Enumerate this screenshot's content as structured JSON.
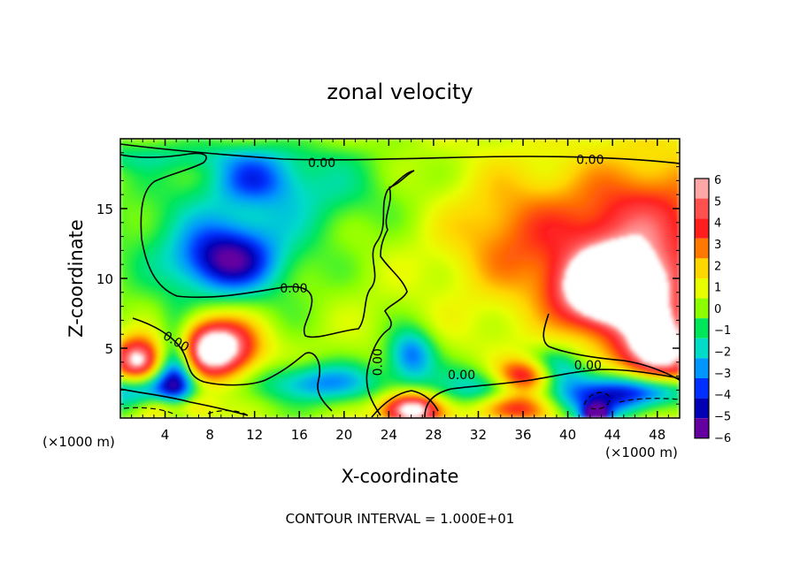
{
  "chart_data": {
    "type": "heatmap",
    "title": "zonal velocity",
    "xlabel": "X-coordinate",
    "ylabel": "Z-coordinate",
    "x_unit_left": "(×1000 m)",
    "x_unit_right": "(×1000 m)",
    "footer": "CONTOUR INTERVAL = 1.000E+01",
    "xlim": [
      0,
      50
    ],
    "ylim": [
      0,
      20
    ],
    "x_ticks": [
      "4",
      "8",
      "12",
      "16",
      "20",
      "24",
      "28",
      "32",
      "36",
      "40",
      "44",
      "48"
    ],
    "y_ticks": [
      "5",
      "10",
      "15"
    ],
    "colorbar": {
      "range": [
        -6,
        6
      ],
      "labels": [
        "6",
        "5",
        "4",
        "3",
        "2",
        "1",
        "0",
        "−1",
        "−2",
        "−3",
        "−4",
        "−5",
        "−6"
      ],
      "colors": [
        "#ffa7a7",
        "#ff5050",
        "#ff1e1e",
        "#ff7800",
        "#ffd700",
        "#e8ff00",
        "#8cff00",
        "#00e65a",
        "#00dcc8",
        "#0096ff",
        "#0030ff",
        "#0000b4",
        "#6400a0"
      ],
      "saturation_color": "#ffffff"
    },
    "contour_labels": [
      {
        "text": "0.00",
        "x": 18.0,
        "z": 18.3,
        "angle": 0
      },
      {
        "text": "0.00",
        "x": 42.0,
        "z": 18.5,
        "angle": 0
      },
      {
        "text": "0.00",
        "x": 15.5,
        "z": 9.3,
        "angle": 0
      },
      {
        "text": "0.00",
        "x": 5.0,
        "z": 5.5,
        "angle": 30
      },
      {
        "text": "0.00",
        "x": 23.0,
        "z": 4.0,
        "angle": -90
      },
      {
        "text": "0.00",
        "x": 30.5,
        "z": 3.1,
        "angle": 0
      },
      {
        "text": "0.00",
        "x": 41.8,
        "z": 3.8,
        "angle": 0
      }
    ],
    "features": [
      {
        "sign": "negative",
        "value": -4.5,
        "x": 9.5,
        "z": 11.3,
        "sx": 3.0,
        "sz": 1.6
      },
      {
        "sign": "negative",
        "value": -2.5,
        "x": 12.0,
        "z": 17.2,
        "sx": 2.5,
        "sz": 1.2
      },
      {
        "sign": "negative",
        "value": -2.0,
        "x": 10.0,
        "z": 13.0,
        "sx": 6.0,
        "sz": 3.5
      },
      {
        "sign": "negative",
        "value": -1.5,
        "x": 18.0,
        "z": 16.5,
        "sx": 5.5,
        "sz": 2.0
      },
      {
        "sign": "negative",
        "value": -1.2,
        "x": 3.0,
        "z": 18.7,
        "sx": 10.0,
        "sz": 0.7
      },
      {
        "sign": "positive",
        "value": 3.2,
        "x": 46.5,
        "z": 14.0,
        "sx": 5.0,
        "sz": 3.0
      },
      {
        "sign": "positive",
        "value": 4.0,
        "x": 44.5,
        "z": 9.5,
        "sx": 4.0,
        "sz": 2.5
      },
      {
        "sign": "positive",
        "value": 8.0,
        "x": 44.0,
        "z": 9.2,
        "sx": 2.8,
        "sz": 1.6
      },
      {
        "sign": "positive",
        "value": 7.0,
        "x": 48.0,
        "z": 5.0,
        "sx": 2.2,
        "sz": 1.8
      },
      {
        "sign": "positive",
        "value": 2.2,
        "x": 35.0,
        "z": 13.0,
        "sx": 4.0,
        "sz": 3.0
      },
      {
        "sign": "positive",
        "value": 8.0,
        "x": 8.5,
        "z": 5.0,
        "sx": 2.5,
        "sz": 1.5
      },
      {
        "sign": "positive",
        "value": 7.0,
        "x": 1.5,
        "z": 4.0,
        "sx": 1.5,
        "sz": 1.2
      },
      {
        "sign": "positive",
        "value": 7.0,
        "x": 36.5,
        "z": 3.0,
        "sx": 2.0,
        "sz": 0.9
      },
      {
        "sign": "positive",
        "value": 7.0,
        "x": 26.0,
        "z": 0.6,
        "sx": 1.8,
        "sz": 0.8
      },
      {
        "sign": "positive",
        "value": 5.0,
        "x": 35.0,
        "z": 0.8,
        "sx": 2.5,
        "sz": 0.8
      },
      {
        "sign": "positive",
        "value": 4.5,
        "x": 5.0,
        "z": 0.8,
        "sx": 2.0,
        "sz": 0.8
      },
      {
        "sign": "negative",
        "value": -5.0,
        "x": 5.0,
        "z": 3.0,
        "sx": 1.2,
        "sz": 2.5
      },
      {
        "sign": "negative",
        "value": -4.0,
        "x": 2.0,
        "z": 2.0,
        "sx": 3.0,
        "sz": 1.0
      },
      {
        "sign": "negative",
        "value": -4.0,
        "x": 26.0,
        "z": 4.5,
        "sx": 1.5,
        "sz": 1.3
      },
      {
        "sign": "negative",
        "value": -3.5,
        "x": 33.0,
        "z": 2.0,
        "sx": 3.5,
        "sz": 1.2
      },
      {
        "sign": "negative",
        "value": -5.0,
        "x": 43.0,
        "z": 1.5,
        "sx": 3.5,
        "sz": 1.2
      },
      {
        "sign": "negative",
        "value": -4.0,
        "x": 38.5,
        "z": 3.5,
        "sx": 2.0,
        "sz": 1.0
      },
      {
        "sign": "negative",
        "value": -3.5,
        "x": 48.0,
        "z": 2.0,
        "sx": 3.0,
        "sz": 0.8
      },
      {
        "sign": "negative",
        "value": -3.5,
        "x": 18.0,
        "z": 2.5,
        "sx": 4.0,
        "sz": 1.0
      },
      {
        "sign": "negative",
        "value": -6.0,
        "x": 42.5,
        "z": 0.2,
        "sx": 0.8,
        "sz": 0.5
      }
    ]
  }
}
